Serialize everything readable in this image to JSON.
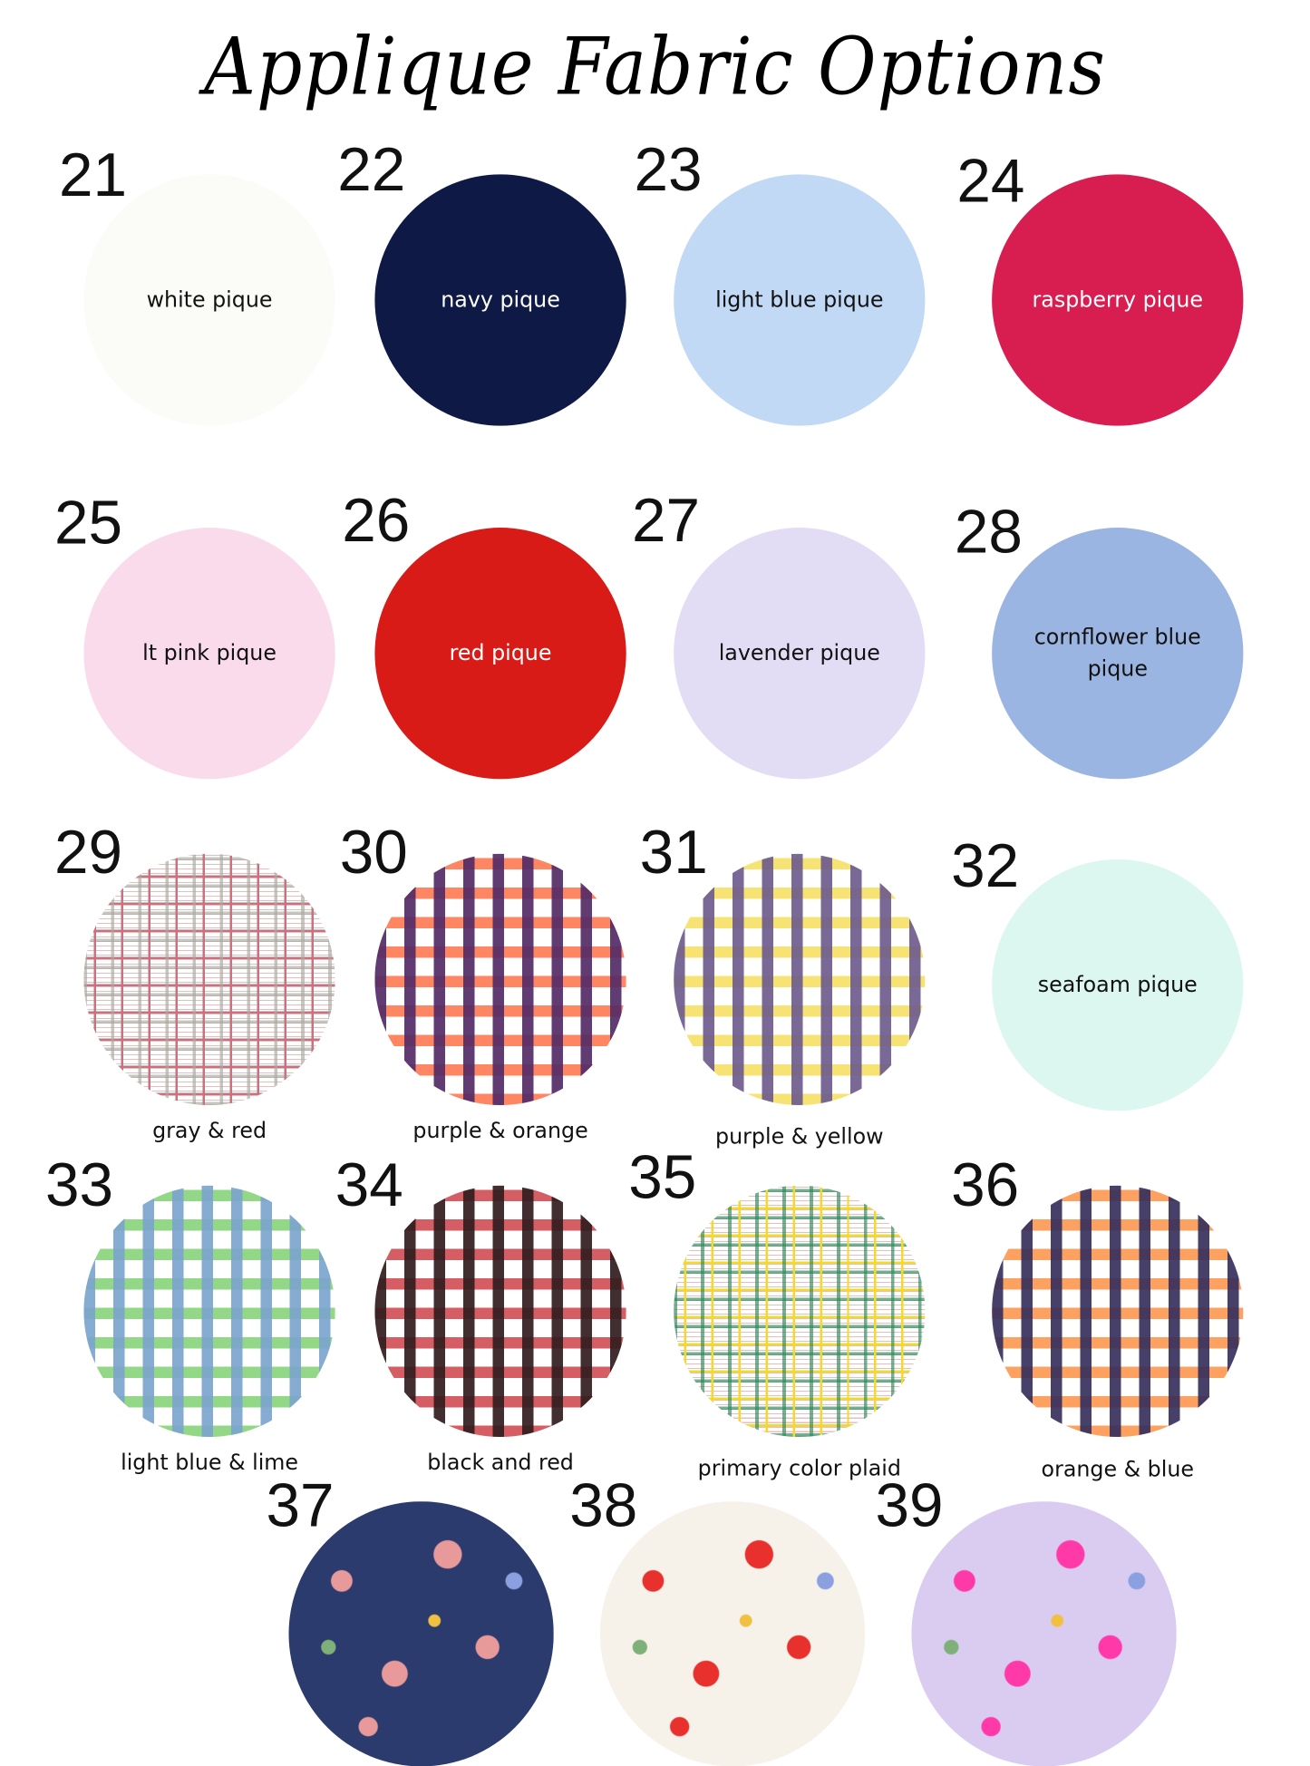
{
  "title": "Applique Fabric Options",
  "fabrics": [
    {
      "number": "21",
      "name": "white pique",
      "label_position": "inside",
      "color": "#fbfcf7",
      "text_color": "#111111",
      "pattern": "solid"
    },
    {
      "number": "22",
      "name": "navy pique",
      "label_position": "inside",
      "color": "#0e1a45",
      "text_color": "#ffffff",
      "pattern": "solid"
    },
    {
      "number": "23",
      "name": "light blue pique",
      "label_position": "inside",
      "color": "#c2d9f6",
      "text_color": "#111111",
      "pattern": "solid"
    },
    {
      "number": "24",
      "name": "raspberry pique",
      "label_position": "inside",
      "color": "#d81e50",
      "text_color": "#ffffff",
      "pattern": "solid"
    },
    {
      "number": "25",
      "name": "lt pink pique",
      "label_position": "inside",
      "color": "#fadbec",
      "text_color": "#111111",
      "pattern": "solid"
    },
    {
      "number": "26",
      "name": "red pique",
      "label_position": "inside",
      "color": "#d91b17",
      "text_color": "#ffffff",
      "pattern": "solid"
    },
    {
      "number": "27",
      "name": "lavender pique",
      "label_position": "inside",
      "color": "#e3dcf5",
      "text_color": "#111111",
      "pattern": "solid"
    },
    {
      "number": "28",
      "name": "cornflower blue pique",
      "label_position": "inside",
      "color": "#9bb5e2",
      "text_color": "#111111",
      "pattern": "solid"
    },
    {
      "number": "29",
      "name": "gray & red",
      "label_position": "below",
      "color": "#c9717f",
      "pattern": "plaid",
      "accent": "#a8a9a0"
    },
    {
      "number": "30",
      "name": "purple & orange",
      "label_position": "below",
      "color": "#ff5a2a",
      "pattern": "gingham",
      "accent": "#3a2470"
    },
    {
      "number": "31",
      "name": "purple & yellow",
      "label_position": "below",
      "color": "#f4d940",
      "pattern": "gingham",
      "accent": "#5a4a98"
    },
    {
      "number": "32",
      "name": "seafoam pique",
      "label_position": "inside",
      "color": "#dcf6f0",
      "text_color": "#111111",
      "pattern": "solid"
    },
    {
      "number": "33",
      "name": "light blue & lime",
      "label_position": "below",
      "color": "#6cc95a",
      "pattern": "gingham",
      "accent": "#7e9fe0"
    },
    {
      "number": "34",
      "name": "black and red",
      "label_position": "below",
      "color": "#c5232c",
      "pattern": "gingham",
      "accent": "#1c1c1c"
    },
    {
      "number": "35",
      "name": "primary color plaid",
      "label_position": "below",
      "color": "#f3da2a",
      "pattern": "plaid",
      "accent": "#2a8a5a"
    },
    {
      "number": "36",
      "name": "orange & blue",
      "label_position": "below",
      "color": "#fb7f27",
      "pattern": "gingham",
      "accent": "#1a2464"
    },
    {
      "number": "37",
      "name": "",
      "label_position": "none",
      "color": "#2c3b6e",
      "pattern": "floral",
      "accent": "#e89a9a"
    },
    {
      "number": "38",
      "name": "",
      "label_position": "none",
      "color": "#f6f2ea",
      "pattern": "floral",
      "accent": "#e8302c"
    },
    {
      "number": "39",
      "name": "",
      "label_position": "none",
      "color": "#d9ccf0",
      "pattern": "floral",
      "accent": "#ff3aa8"
    }
  ]
}
